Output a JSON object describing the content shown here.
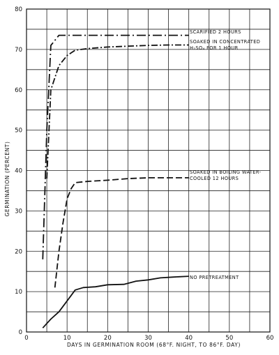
{
  "chart_data": {
    "type": "line",
    "title": "",
    "xlabel": "DAYS IN GERMINATION ROOM (68°F. NIGHT, TO 86°F. DAY)",
    "ylabel": "GERMINATION (PERCENT)",
    "xlim": [
      0,
      60
    ],
    "ylim": [
      0,
      80
    ],
    "xticks": [
      0,
      10,
      20,
      30,
      40,
      50,
      60
    ],
    "yticks": [
      0,
      10,
      20,
      30,
      40,
      50,
      60,
      70,
      80
    ],
    "grid": true,
    "series": [
      {
        "name": "SCARIFIED 2 HOURS",
        "line_style": "long-dash-dot",
        "x": [
          4,
          5,
          6,
          8,
          10,
          20,
          30,
          40
        ],
        "y": [
          18,
          50,
          71,
          73.5,
          73.5,
          73.5,
          73.5,
          73.5
        ]
      },
      {
        "name": "SOAKED IN CONCENTRATED H₂SO₄ FOR 1 HOUR",
        "line_style": "dash-dot",
        "x": [
          5,
          6,
          8,
          10,
          12,
          15,
          20,
          25,
          30,
          35,
          40
        ],
        "y": [
          38,
          60,
          66,
          68.5,
          69.8,
          70.2,
          70.6,
          70.8,
          71,
          71.1,
          71.1
        ]
      },
      {
        "name": "SOAKED IN BOILING WATER-COOLED 12 HOURS",
        "line_style": "dashed",
        "x": [
          7,
          8,
          9,
          10,
          11,
          12,
          15,
          20,
          25,
          30,
          35,
          40
        ],
        "y": [
          11,
          20,
          27,
          33,
          35.5,
          37,
          37.3,
          37.6,
          38,
          38.2,
          38.2,
          38.2
        ]
      },
      {
        "name": "NO PRETREATMENT",
        "line_style": "solid",
        "x": [
          4,
          6,
          8,
          10,
          12,
          14,
          17,
          20,
          24,
          27,
          30,
          33,
          36,
          40
        ],
        "y": [
          1,
          3.2,
          5,
          7.7,
          10.4,
          11,
          11.2,
          11.7,
          11.8,
          12.6,
          12.9,
          13.4,
          13.6,
          13.8
        ]
      }
    ],
    "annotations": [
      {
        "lines": [
          "SCARIFIED 2 HOURS"
        ]
      },
      {
        "lines": [
          "SOAKED IN CONCENTRATED",
          "H₂SO₄ FOR 1 HOUR"
        ]
      },
      {
        "lines": [
          "SOAKED IN BOILING WATER-",
          "COOLED 12 HOURS"
        ]
      },
      {
        "lines": [
          "NO PRETREATMENT"
        ]
      }
    ]
  }
}
